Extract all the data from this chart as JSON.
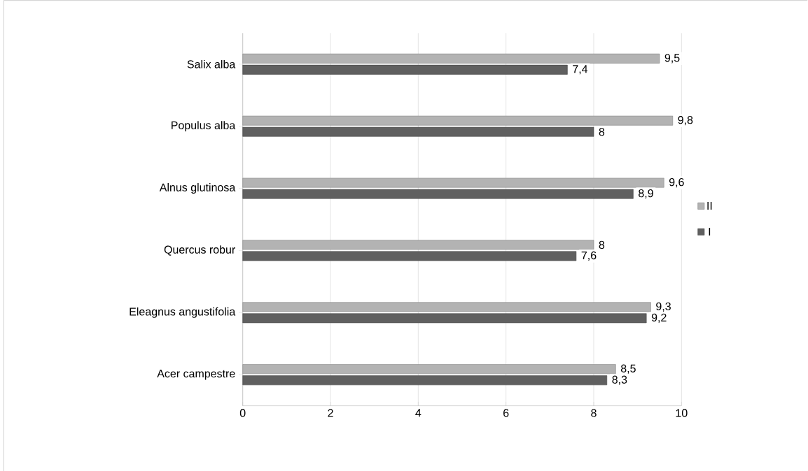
{
  "chart_data": {
    "type": "bar",
    "orientation": "horizontal",
    "categories": [
      "Salix alba",
      "Populus alba",
      "Alnus glutinosa",
      "Quercus robur",
      "Eleagnus angustifolia",
      "Acer campestre"
    ],
    "series": [
      {
        "name": "II",
        "color": "#b3b3b3",
        "values": [
          9.5,
          9.8,
          9.6,
          8,
          9.3,
          8.5
        ],
        "value_labels": [
          "9,5",
          "9,8",
          "9,6",
          "8",
          "9,3",
          "8,5"
        ]
      },
      {
        "name": "I",
        "color": "#606060",
        "values": [
          7.4,
          8,
          8.9,
          7.6,
          9.2,
          8.3
        ],
        "value_labels": [
          "7,4",
          "8",
          "8,9",
          "7,6",
          "9,2",
          "8,3"
        ]
      }
    ],
    "xlim": [
      0,
      10
    ],
    "xticks": [
      0,
      2,
      4,
      6,
      8,
      10
    ],
    "grid": "x",
    "legend": "right"
  }
}
